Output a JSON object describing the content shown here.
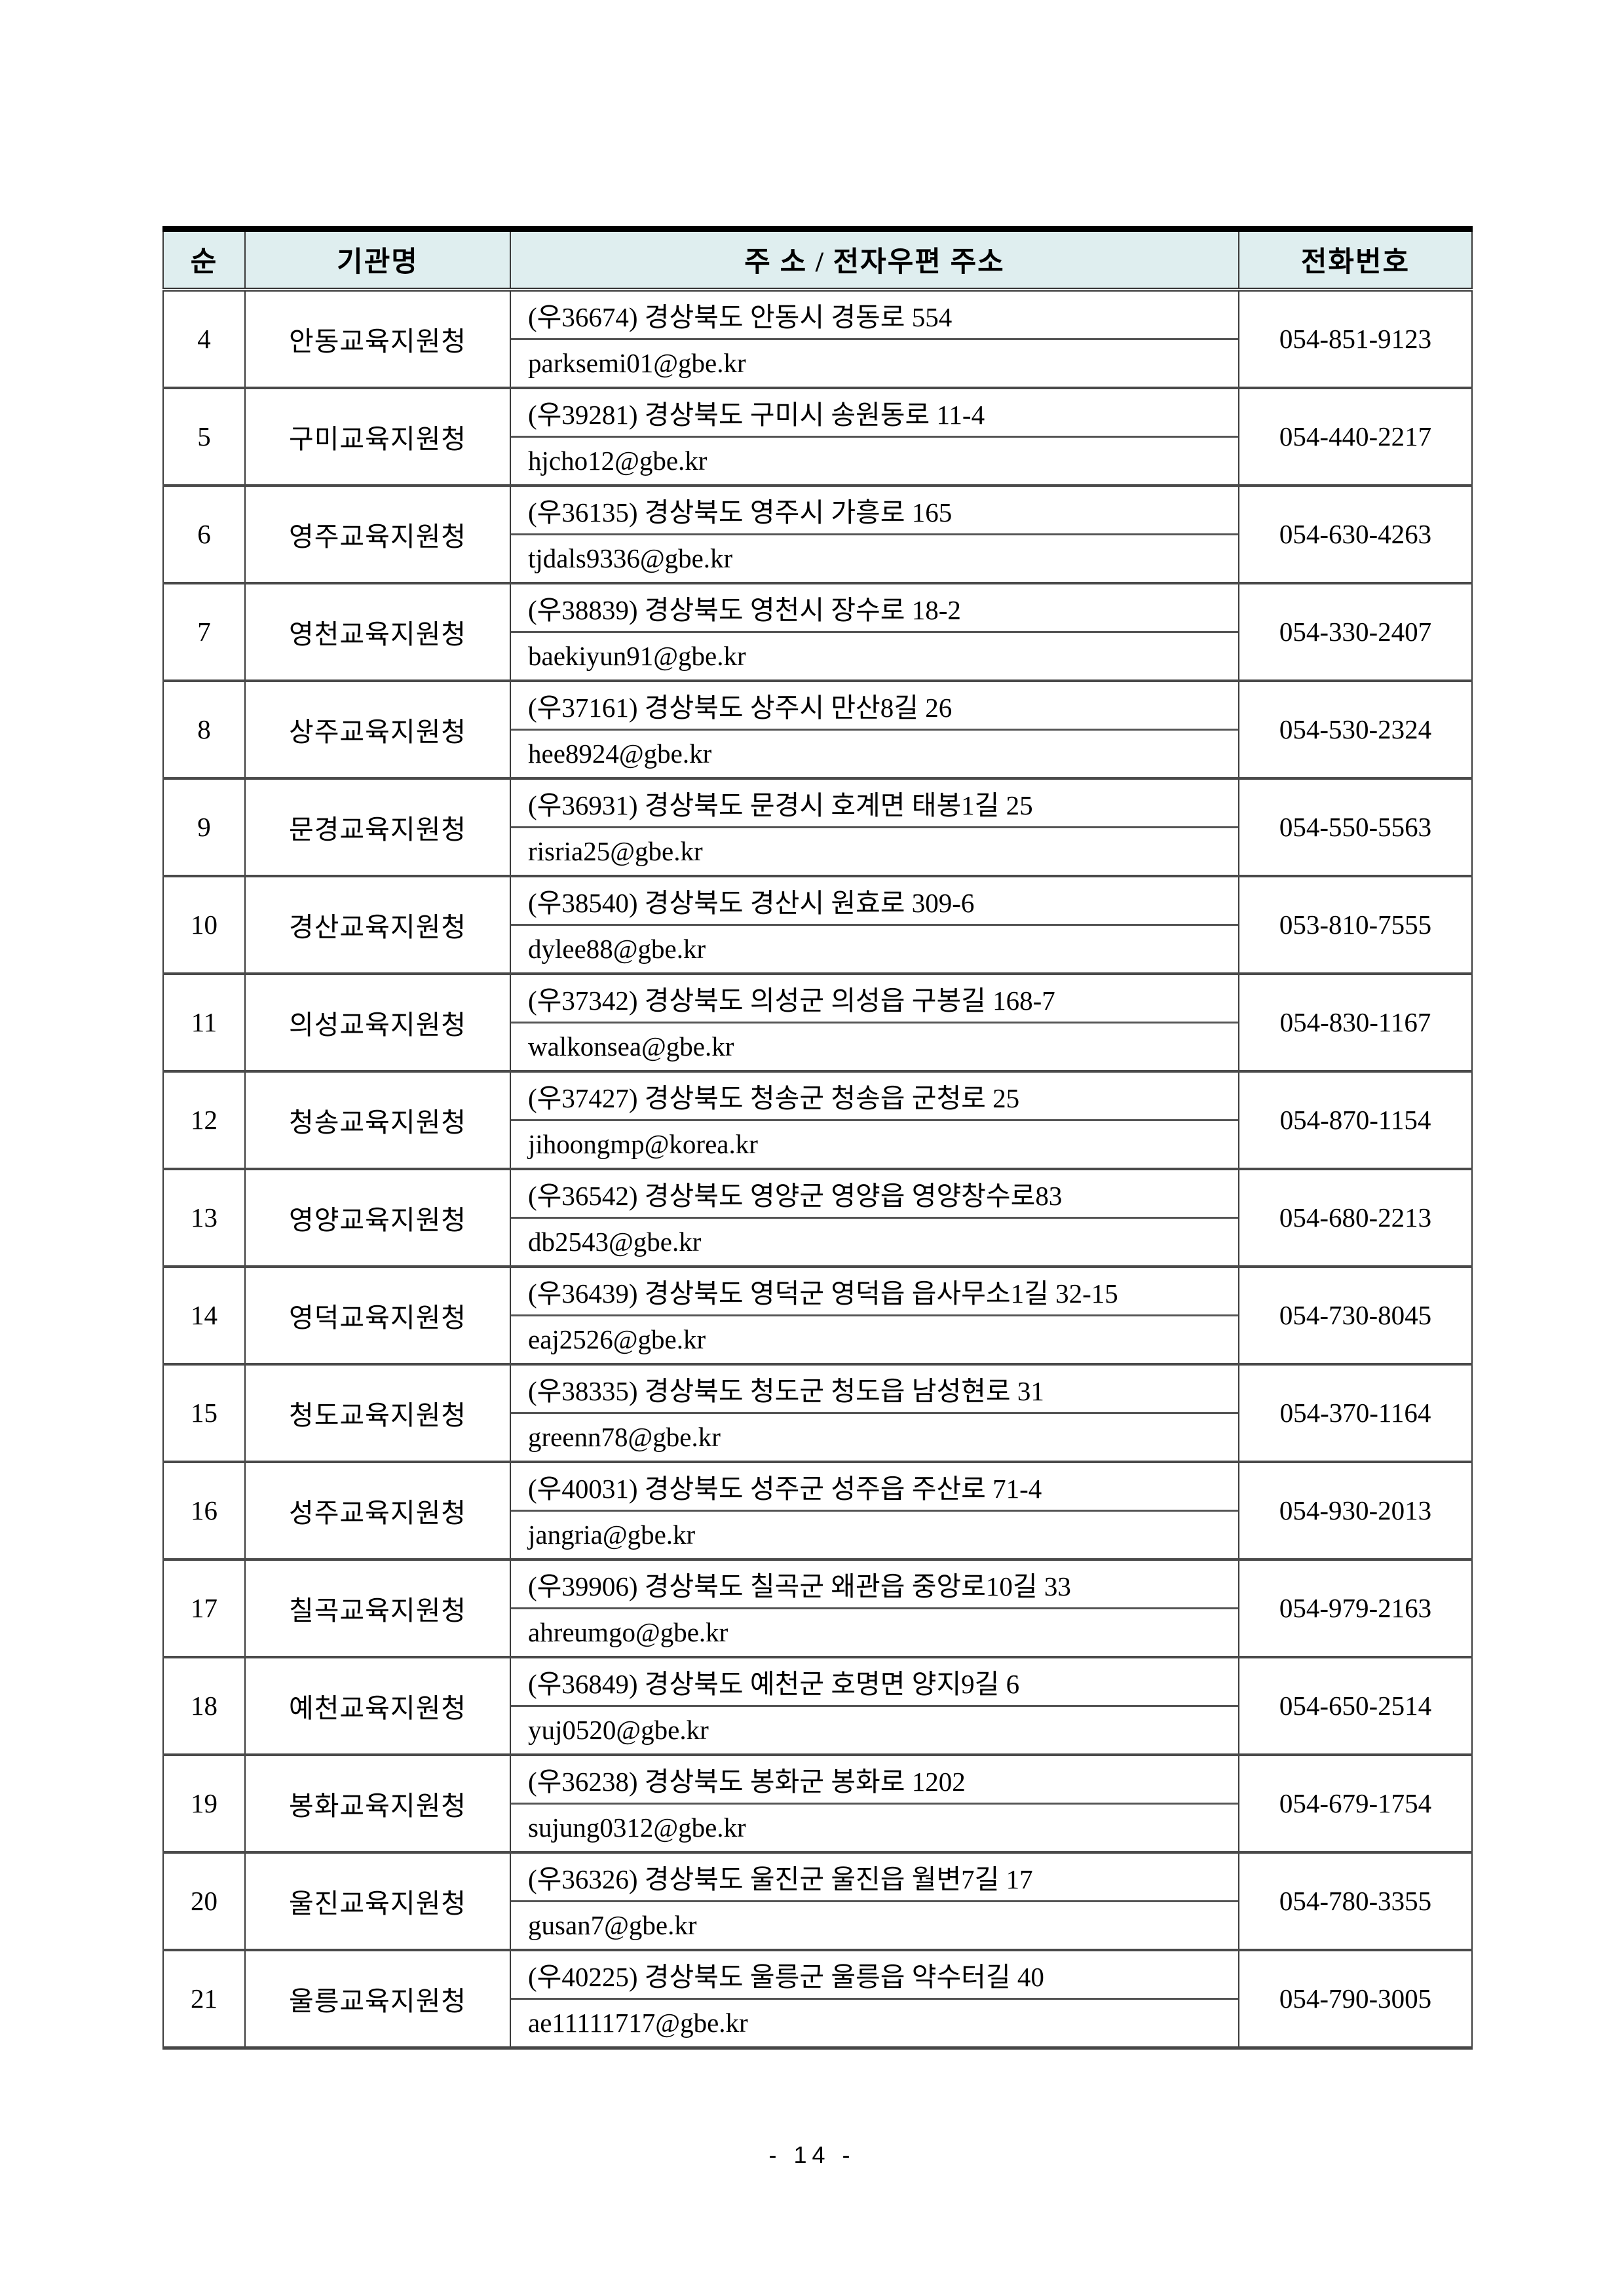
{
  "page": {
    "footer_page_number": "- 14 -"
  },
  "colors": {
    "header_bg": "#dfeeef",
    "border_dark": "#000000",
    "border_gray": "#4a4a4a"
  },
  "table": {
    "headers": [
      "순",
      "기관명",
      "주 소 / 전자우편 주소",
      "전화번호"
    ],
    "rows": [
      {
        "no": "4",
        "name": "안동교육지원청",
        "address": "(우36674) 경상북도 안동시 경동로 554",
        "email": "parksemi01@gbe.kr",
        "phone": "054-851-9123"
      },
      {
        "no": "5",
        "name": "구미교육지원청",
        "address": "(우39281) 경상북도 구미시 송원동로 11-4",
        "email": "hjcho12@gbe.kr",
        "phone": "054-440-2217"
      },
      {
        "no": "6",
        "name": "영주교육지원청",
        "address": "(우36135) 경상북도 영주시 가흥로 165",
        "email": "tjdals9336@gbe.kr",
        "phone": "054-630-4263"
      },
      {
        "no": "7",
        "name": "영천교육지원청",
        "address": "(우38839) 경상북도 영천시 장수로 18-2",
        "email": "baekiyun91@gbe.kr",
        "phone": "054-330-2407"
      },
      {
        "no": "8",
        "name": "상주교육지원청",
        "address": "(우37161) 경상북도 상주시 만산8길 26",
        "email": "hee8924@gbe.kr",
        "phone": "054-530-2324"
      },
      {
        "no": "9",
        "name": "문경교육지원청",
        "address": "(우36931) 경상북도 문경시 호계면 태봉1길 25",
        "email": "risria25@gbe.kr",
        "phone": "054-550-5563"
      },
      {
        "no": "10",
        "name": "경산교육지원청",
        "address": "(우38540) 경상북도 경산시 원효로 309-6",
        "email": "dylee88@gbe.kr",
        "phone": "053-810-7555"
      },
      {
        "no": "11",
        "name": "의성교육지원청",
        "address": "(우37342) 경상북도 의성군 의성읍 구봉길 168-7",
        "email": "walkonsea@gbe.kr",
        "phone": "054-830-1167"
      },
      {
        "no": "12",
        "name": "청송교육지원청",
        "address": "(우37427) 경상북도 청송군 청송읍 군청로 25",
        "email": "jihoongmp@korea.kr",
        "phone": "054-870-1154"
      },
      {
        "no": "13",
        "name": "영양교육지원청",
        "address": "(우36542) 경상북도 영양군 영양읍 영양창수로83",
        "email": "db2543@gbe.kr",
        "phone": "054-680-2213"
      },
      {
        "no": "14",
        "name": "영덕교육지원청",
        "address": "(우36439) 경상북도 영덕군 영덕읍 읍사무소1길 32-15",
        "email": "eaj2526@gbe.kr",
        "phone": "054-730-8045"
      },
      {
        "no": "15",
        "name": "청도교육지원청",
        "address": "(우38335) 경상북도 청도군 청도읍 남성현로 31",
        "email": "greenn78@gbe.kr",
        "phone": "054-370-1164"
      },
      {
        "no": "16",
        "name": "성주교육지원청",
        "address": "(우40031) 경상북도 성주군 성주읍 주산로 71-4",
        "email": "jangria@gbe.kr",
        "phone": "054-930-2013"
      },
      {
        "no": "17",
        "name": "칠곡교육지원청",
        "address": "(우39906) 경상북도 칠곡군 왜관읍 중앙로10길 33",
        "email": "ahreumgo@gbe.kr",
        "phone": "054-979-2163"
      },
      {
        "no": "18",
        "name": "예천교육지원청",
        "address": "(우36849) 경상북도 예천군 호명면 양지9길 6",
        "email": "yuj0520@gbe.kr",
        "phone": "054-650-2514"
      },
      {
        "no": "19",
        "name": "봉화교육지원청",
        "address": "(우36238) 경상북도 봉화군 봉화로 1202",
        "email": "sujung0312@gbe.kr",
        "phone": "054-679-1754"
      },
      {
        "no": "20",
        "name": "울진교육지원청",
        "address": "(우36326) 경상북도 울진군 울진읍 월변7길 17",
        "email": "gusan7@gbe.kr",
        "phone": "054-780-3355"
      },
      {
        "no": "21",
        "name": "울릉교육지원청",
        "address": "(우40225) 경상북도 울릉군 울릉읍 약수터길 40",
        "email": "ae11111717@gbe.kr",
        "phone": "054-790-3005"
      }
    ]
  }
}
